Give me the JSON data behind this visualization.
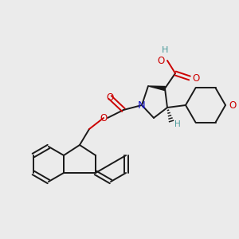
{
  "background_color": "#ebebeb",
  "bond_color": "#1a1a1a",
  "oxygen_color": "#cc0000",
  "nitrogen_color": "#1414cc",
  "hydrogen_color": "#4a9a9a",
  "figsize": [
    3.0,
    3.0
  ],
  "dpi": 100,
  "xlim": [
    0,
    300
  ],
  "ylim": [
    0,
    300
  ]
}
